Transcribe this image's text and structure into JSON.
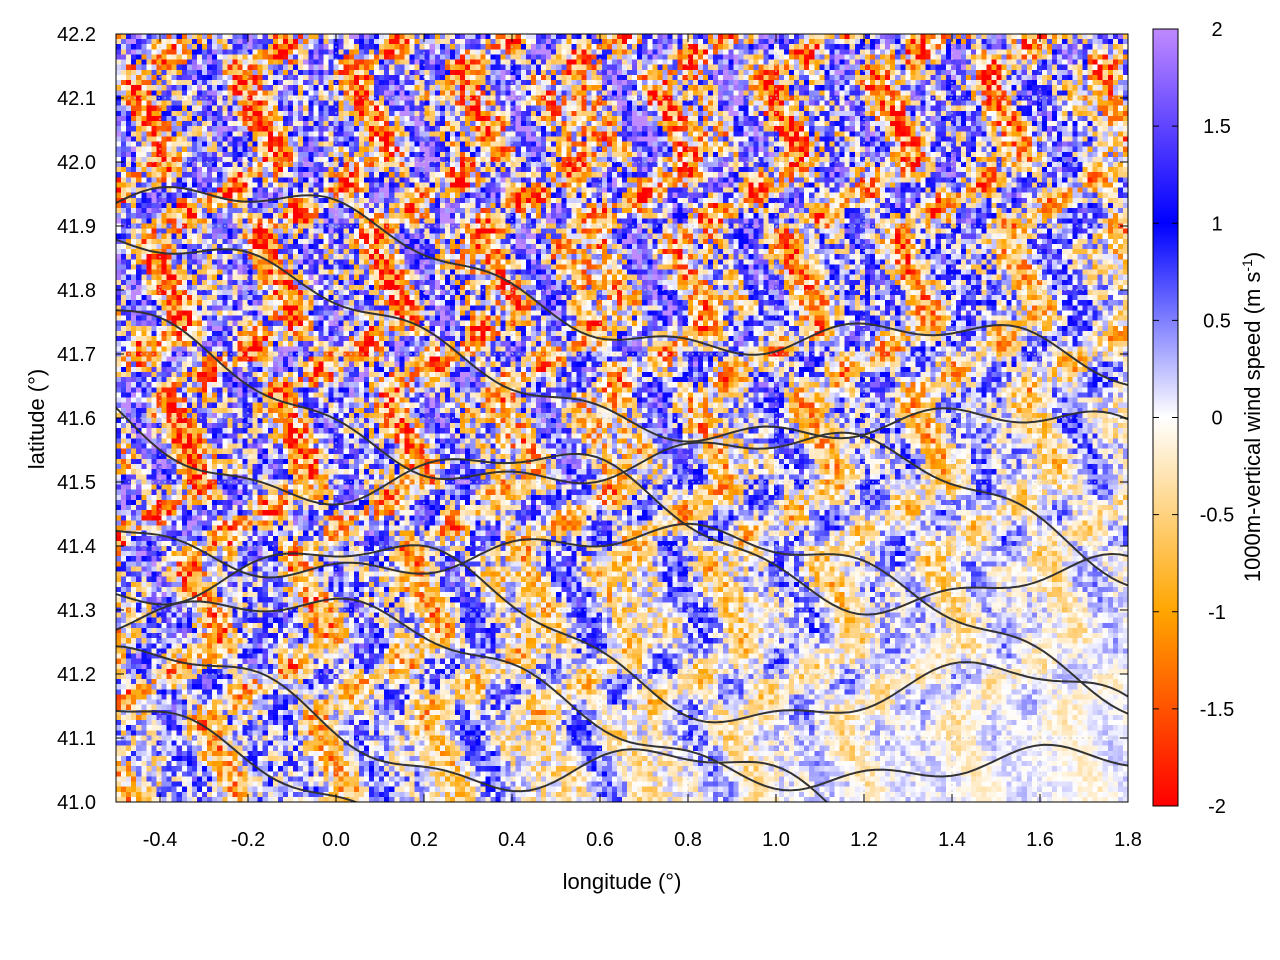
{
  "chart_data": {
    "type": "heatmap",
    "title": "",
    "xlabel": "longitude (°)",
    "ylabel": "latitude (°)",
    "colorbar_label_main": "1000m-vertical wind speed (m s",
    "colorbar_label_sup": "-1",
    "colorbar_label_end": ")",
    "xlim": [
      -0.5,
      1.8
    ],
    "ylim": [
      41.0,
      42.2
    ],
    "clim": [
      -2,
      2
    ],
    "x_ticks": [
      "-0.4",
      "-0.2",
      "0.0",
      "0.2",
      "0.4",
      "0.6",
      "0.8",
      "1.0",
      "1.2",
      "1.4",
      "1.6",
      "1.8"
    ],
    "x_tick_values": [
      -0.4,
      -0.2,
      0.0,
      0.2,
      0.4,
      0.6,
      0.8,
      1.0,
      1.2,
      1.4,
      1.6,
      1.8
    ],
    "y_ticks": [
      "41.0",
      "41.1",
      "41.2",
      "41.3",
      "41.4",
      "41.5",
      "41.6",
      "41.7",
      "41.8",
      "41.9",
      "42.0",
      "42.1",
      "42.2"
    ],
    "y_tick_values": [
      41.0,
      41.1,
      41.2,
      41.3,
      41.4,
      41.5,
      41.6,
      41.7,
      41.8,
      41.9,
      42.0,
      42.1,
      42.2
    ],
    "colorbar_ticks": [
      "2",
      "1.5",
      "1",
      "0.5",
      "0",
      "-0.5",
      "-1",
      "-1.5",
      "-2"
    ],
    "colorbar_tick_values": [
      2,
      1.5,
      1,
      0.5,
      0,
      -0.5,
      -1,
      -1.5,
      -2
    ],
    "colormap": [
      {
        "value": -2,
        "color": "#ff0000"
      },
      {
        "value": -1,
        "color": "#ffa500"
      },
      {
        "value": 0,
        "color": "#ffffff"
      },
      {
        "value": 1,
        "color": "#0000ff"
      },
      {
        "value": 2,
        "color": "#c08aff"
      }
    ],
    "contour_color": "#333333",
    "grid": true
  }
}
